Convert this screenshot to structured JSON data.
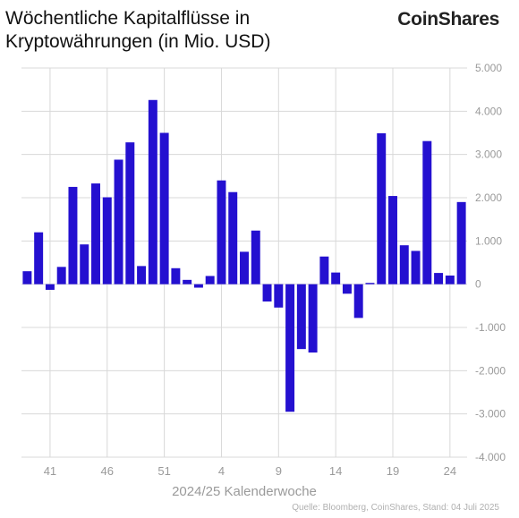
{
  "header": {
    "title_line1": "Wöchentliche Kapitalflüsse in",
    "title_line2": "Kryptowährungen (in Mio. USD)",
    "logo": "CoinShares"
  },
  "footer": {
    "source": "Quelle: Bloomberg, CoinShares, Stand: 04 Juli 2025"
  },
  "colors": {
    "bar": "#2410d0",
    "grid": "#d8d8d8",
    "tick_text": "#9a9a9a"
  },
  "chart_data": {
    "type": "bar",
    "xlabel": "2024/25 Kalenderwoche",
    "ylabel": "",
    "ylim": [
      -4000,
      5000
    ],
    "grid": true,
    "y_axis_position": "right",
    "yticks": [
      5000,
      4000,
      3000,
      2000,
      1000,
      0,
      -1000,
      -2000,
      -3000,
      -4000
    ],
    "ytick_labels": [
      "5.000",
      "4.000",
      "3.000",
      "2.000",
      "1.000",
      "0",
      "-1.000",
      "-2.000",
      "-3.000",
      "-4.000"
    ],
    "categories": [
      "39",
      "40",
      "41",
      "42",
      "43",
      "44",
      "45",
      "46",
      "47",
      "48",
      "49",
      "50",
      "51",
      "52",
      "1",
      "2",
      "3",
      "4",
      "5",
      "6",
      "7",
      "8",
      "9",
      "10",
      "11",
      "12",
      "13",
      "14",
      "15",
      "16",
      "17",
      "18",
      "19",
      "20",
      "21",
      "22",
      "23",
      "24"
    ],
    "xtick_labels": [
      "41",
      "46",
      "51",
      "4",
      "9",
      "14",
      "19",
      "24"
    ],
    "values": [
      300,
      1200,
      -130,
      400,
      2250,
      920,
      2330,
      2010,
      2880,
      3280,
      420,
      4260,
      3500,
      370,
      100,
      -80,
      190,
      2400,
      2130,
      750,
      1240,
      -400,
      -540,
      -2950,
      -1500,
      -1580,
      640,
      270,
      -220,
      -780,
      30,
      3490,
      2040,
      900,
      770,
      3310,
      260,
      200
    ],
    "values_tail": [
      1900
    ]
  }
}
